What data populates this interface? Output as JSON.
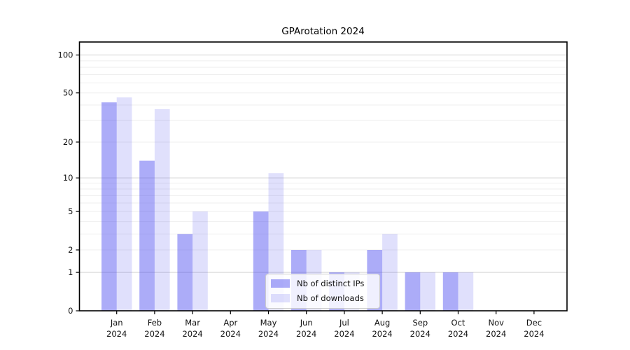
{
  "title": "GPArotation 2024",
  "legend": {
    "items": [
      {
        "label": "Nb of distinct IPs",
        "color": "rgba(70,70,240,0.45)"
      },
      {
        "label": "Nb of downloads",
        "color": "rgba(70,70,240,0.17)"
      }
    ]
  },
  "axes": {
    "y_tick_labels": [
      "0",
      "1",
      "2",
      "5",
      "10",
      "20",
      "50",
      "100"
    ],
    "x_month_labels": [
      "Jan",
      "Feb",
      "Mar",
      "Apr",
      "May",
      "Jun",
      "Jul",
      "Aug",
      "Sep",
      "Oct",
      "Nov",
      "Dec"
    ],
    "x_year_label": "2024"
  },
  "chart_data": {
    "type": "bar",
    "title": "GPArotation 2024",
    "categories": [
      "Jan 2024",
      "Feb 2024",
      "Mar 2024",
      "Apr 2024",
      "May 2024",
      "Jun 2024",
      "Jul 2024",
      "Aug 2024",
      "Sep 2024",
      "Oct 2024",
      "Nov 2024",
      "Dec 2024"
    ],
    "series": [
      {
        "name": "Nb of distinct IPs",
        "values": [
          42,
          14,
          3,
          0,
          5,
          2,
          1,
          2,
          1,
          1,
          0,
          0
        ],
        "color": "rgba(70,70,240,0.45)"
      },
      {
        "name": "Nb of downloads",
        "values": [
          46,
          37,
          5,
          0,
          11,
          2,
          1,
          3,
          1,
          1,
          0,
          0
        ],
        "color": "rgba(70,70,240,0.17)"
      }
    ],
    "xlabel": "",
    "ylabel": "",
    "yscale": "log1p",
    "y_ticks": [
      0,
      1,
      2,
      5,
      10,
      20,
      50,
      100
    ],
    "ylim": [
      0,
      128
    ],
    "grid": "horizontal major+minor",
    "legend_position": "lower center"
  },
  "colors": {
    "bar_distinct_ips": "rgba(70,70,240,0.45)",
    "bar_downloads": "rgba(70,70,240,0.17)",
    "grid_major": "#d3d3d3",
    "grid_minor": "#efefef",
    "axis_spine": "#000000",
    "text": "#111111"
  }
}
